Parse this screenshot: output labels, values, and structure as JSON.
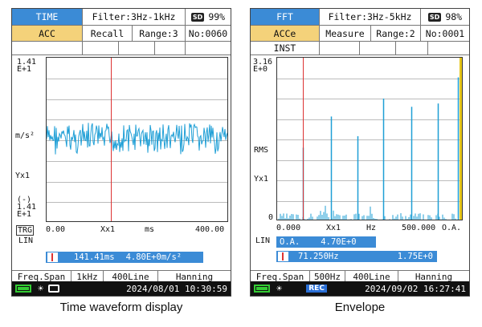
{
  "left": {
    "mode": "TIME",
    "filter": "Filter:3Hz-1kHz",
    "sd_badge": "SD",
    "battery": "99%",
    "sub_mode": "ACC",
    "action": "Recall",
    "range": "Range:3",
    "number": "No:0060",
    "y_top": "1.41\nE+1",
    "y_unit": "m/s²",
    "y_scale": "Yx1",
    "y_bottom": "(-)\n1.41\nE+1",
    "trg": "TRG",
    "x_start": "0.00",
    "x_scale": "Xx1",
    "x_unit": "ms",
    "x_end": "400.00",
    "lin": "LIN",
    "cursor_time": "141.41ms",
    "cursor_value": "4.80E+0m/s²",
    "freq_span": "Freq.Span",
    "freq_value": "1kHz",
    "lines": "400Line",
    "window": "Hanning",
    "datetime": "2024/08/01 10:30:59",
    "caption": "Time waveform display"
  },
  "right": {
    "mode": "FFT",
    "filter": "Filter:3Hz-5kHz",
    "sd_badge": "SD",
    "battery": "98%",
    "sub_mode": "ACCe",
    "action": "Measure",
    "range": "Range:2",
    "number": "No:0001",
    "inst": "INST",
    "y_top": "3.16\nE+0",
    "y_unit": "RMS",
    "y_scale": "Yx1",
    "y_zero": "0",
    "x_start": "0.000",
    "x_scale": "Xx1",
    "x_unit": "Hz",
    "x_end": "500.000",
    "x_oa": "O.A.",
    "lin": "LIN",
    "oa_label": "O.A.",
    "oa_value": "4.70E+0",
    "cursor_freq": "71.250Hz",
    "cursor_value": "1.75E+0",
    "freq_span": "Freq.Span",
    "freq_value": "500Hz",
    "lines": "400Line",
    "window": "Hanning",
    "rec": "REC",
    "datetime": "2024/09/02 16:27:41",
    "caption": "Envelope"
  }
}
